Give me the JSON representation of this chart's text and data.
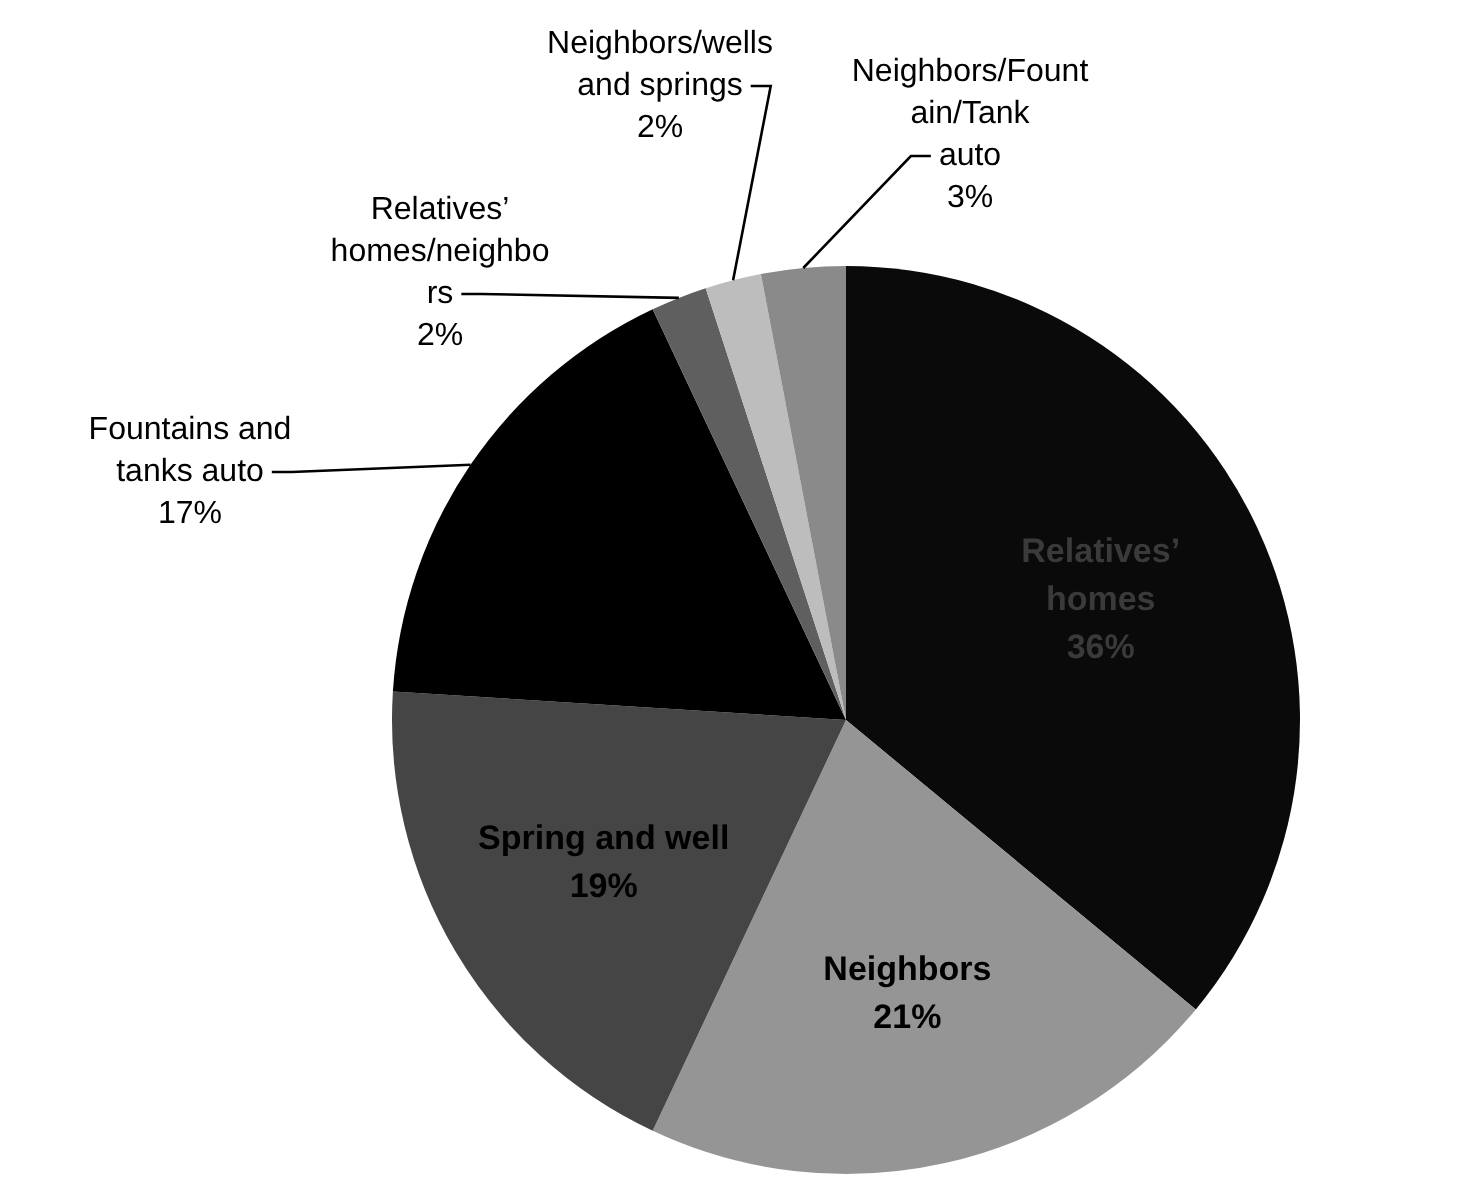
{
  "chart_data": {
    "type": "pie",
    "categories": [
      "Relatives’ homes",
      "Neighbors",
      "Spring and well",
      "Fountains and tanks auto",
      "Relatives’ homes/neighbors",
      "Neighbors/wells and springs",
      "Neighbors/Fountain/Tank auto"
    ],
    "values": [
      36,
      21,
      19,
      17,
      2,
      2,
      3
    ],
    "colors": [
      "#0a0a0a",
      "#959595",
      "#454545",
      "#000000",
      "#5f5f5f",
      "#bdbdbd",
      "#8a8a8a"
    ],
    "value_labels": [
      "36%",
      "21%",
      "19%",
      "17%",
      "2%",
      "2%",
      "3%"
    ],
    "legend": false
  }
}
